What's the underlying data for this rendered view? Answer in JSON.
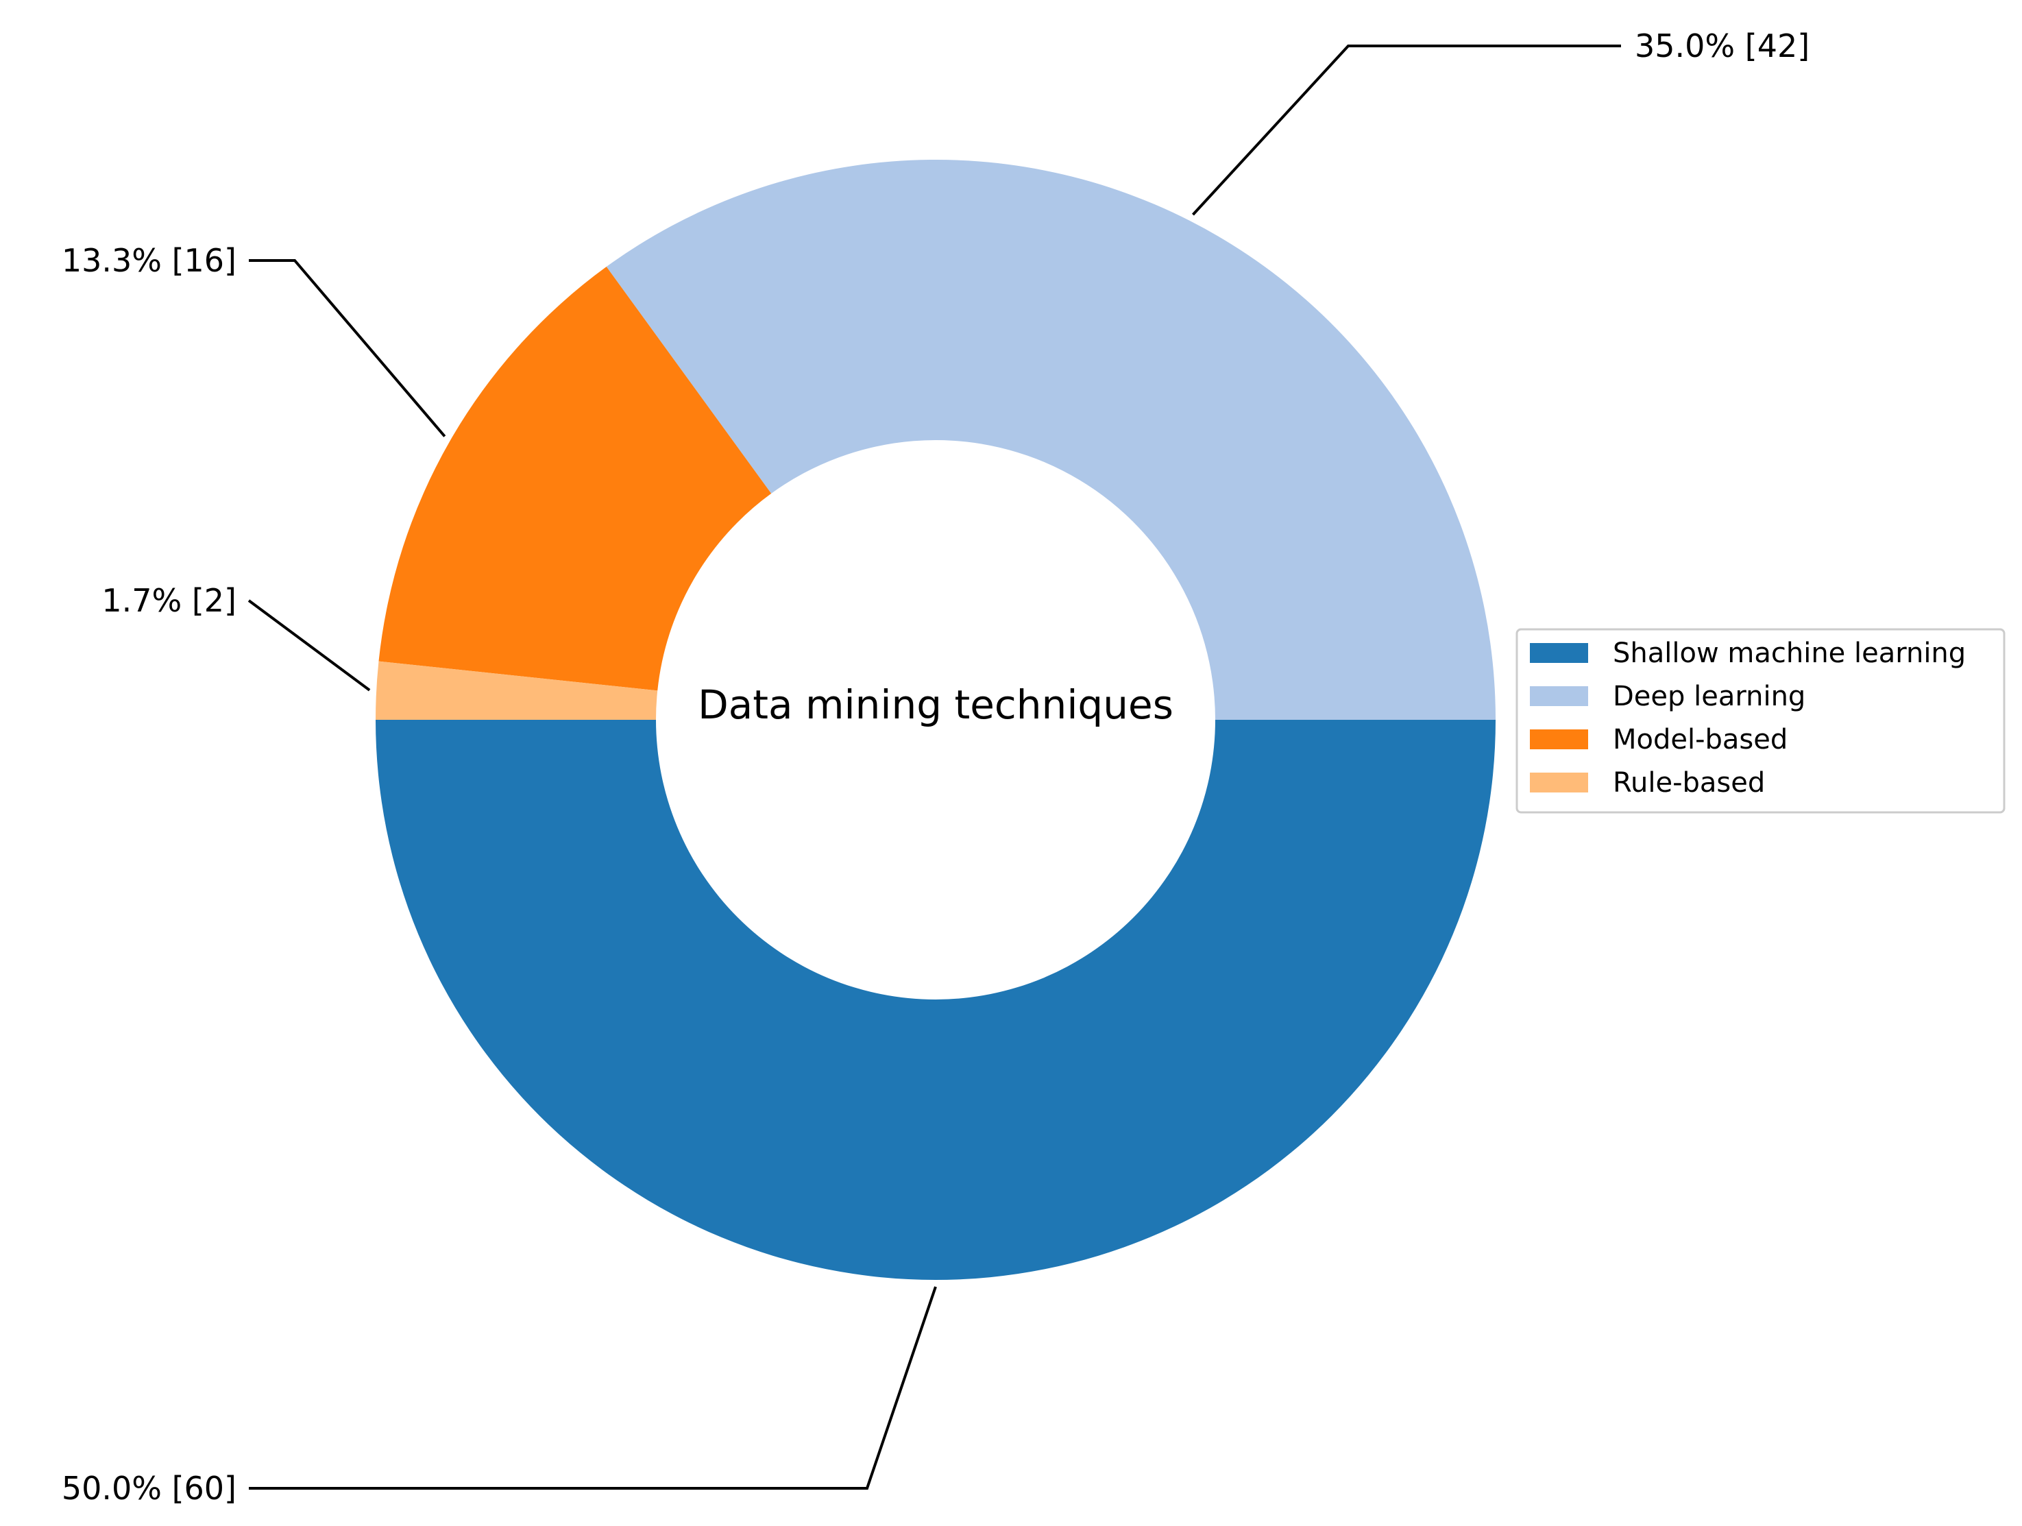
{
  "chart_data": {
    "type": "pie",
    "donut": true,
    "center_label": "Data mining techniques",
    "categories": [
      "Shallow machine learning",
      "Deep learning",
      "Model-based",
      "Rule-based"
    ],
    "values": [
      60,
      42,
      16,
      2
    ],
    "labels": [
      "50.0% [60]",
      "35.0% [42]",
      "13.3% [16]",
      "1.7% [2]"
    ],
    "colors": [
      "#1f77b4",
      "#aec7e8",
      "#ff7f0e",
      "#ffbb78"
    ],
    "legend_position": "right",
    "start_angle_deg": 180,
    "direction": "counterclockwise"
  }
}
